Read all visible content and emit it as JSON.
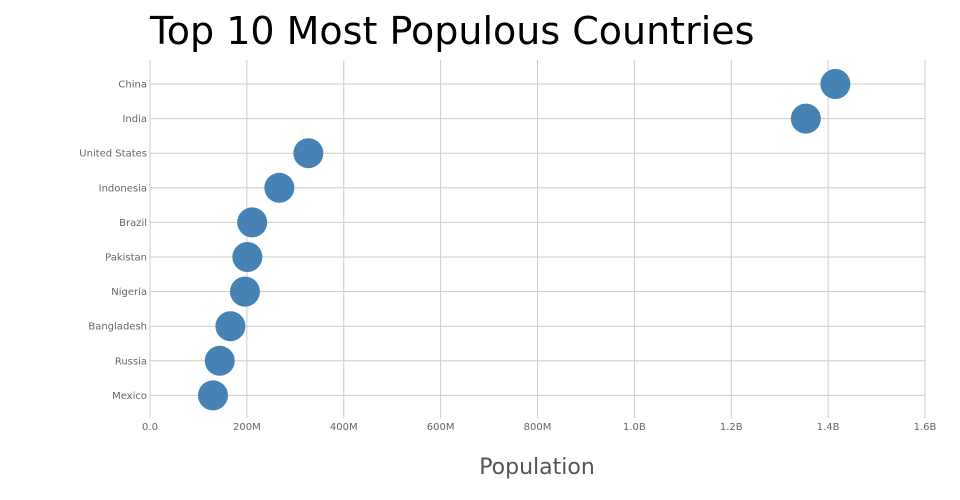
{
  "chart_data": {
    "type": "scatter",
    "title": "Top 10 Most Populous Countries",
    "xlabel": "Population",
    "ylabel": "",
    "xlim": [
      0,
      1600000000
    ],
    "x_ticks": [
      {
        "value": 0,
        "label": "0.0"
      },
      {
        "value": 200000000,
        "label": "200M"
      },
      {
        "value": 400000000,
        "label": "400M"
      },
      {
        "value": 600000000,
        "label": "600M"
      },
      {
        "value": 800000000,
        "label": "800M"
      },
      {
        "value": 1000000000,
        "label": "1.0B"
      },
      {
        "value": 1200000000,
        "label": "1.2B"
      },
      {
        "value": 1400000000,
        "label": "1.4B"
      },
      {
        "value": 1600000000,
        "label": "1.6B"
      }
    ],
    "categories": [
      "China",
      "India",
      "United States",
      "Indonesia",
      "Brazil",
      "Pakistan",
      "Nigeria",
      "Bangladesh",
      "Russia",
      "Mexico"
    ],
    "values": [
      1415000000,
      1354000000,
      327000000,
      267000000,
      211000000,
      201000000,
      196000000,
      166000000,
      144000000,
      130000000
    ],
    "grid": true,
    "legend": "none",
    "colors": {
      "marker": "#4682b4",
      "grid": "#cccccc",
      "tick_text": "#666666",
      "axis_text": "#555555"
    }
  }
}
